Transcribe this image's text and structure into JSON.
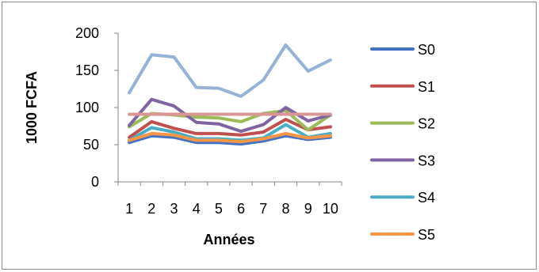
{
  "chart_data": {
    "type": "line",
    "title": "",
    "xlabel": "Années",
    "ylabel": "1000 FCFA",
    "ylim": [
      0,
      200
    ],
    "yticks": [
      0,
      50,
      100,
      150,
      200
    ],
    "categories": [
      "1",
      "2",
      "3",
      "4",
      "5",
      "6",
      "7",
      "8",
      "9",
      "10"
    ],
    "grid": false,
    "legend": "right",
    "series": [
      {
        "name": "S0",
        "color": "#4472c4",
        "values": [
          53,
          62,
          60,
          53,
          53,
          51,
          55,
          62,
          57,
          60
        ],
        "show_in_legend": true
      },
      {
        "name": "S1",
        "color": "#c0504d",
        "values": [
          60,
          81,
          72,
          65,
          65,
          63,
          67,
          84,
          70,
          74
        ],
        "show_in_legend": true
      },
      {
        "name": "S2",
        "color": "#9bbb59",
        "values": [
          74,
          92,
          90,
          87,
          86,
          81,
          92,
          96,
          70,
          90
        ],
        "show_in_legend": true
      },
      {
        "name": "S3",
        "color": "#8064a2",
        "values": [
          76,
          111,
          102,
          80,
          78,
          68,
          77,
          100,
          82,
          90
        ],
        "show_in_legend": true
      },
      {
        "name": "S4",
        "color": "#4bacc6",
        "values": [
          56,
          73,
          67,
          58,
          58,
          56,
          59,
          77,
          60,
          65
        ],
        "show_in_legend": true
      },
      {
        "name": "S5",
        "color": "#f79646",
        "values": [
          56,
          65,
          63,
          56,
          56,
          54,
          58,
          65,
          59,
          62
        ],
        "show_in_legend": true
      },
      {
        "name": "",
        "color": "#95b3d7",
        "values": [
          120,
          171,
          168,
          127,
          126,
          115,
          137,
          184,
          149,
          164
        ],
        "show_in_legend": false
      },
      {
        "name": "",
        "color": "#d99694",
        "values": [
          91,
          91,
          91,
          91,
          91,
          91,
          91,
          91,
          91,
          91
        ],
        "show_in_legend": false
      }
    ]
  }
}
